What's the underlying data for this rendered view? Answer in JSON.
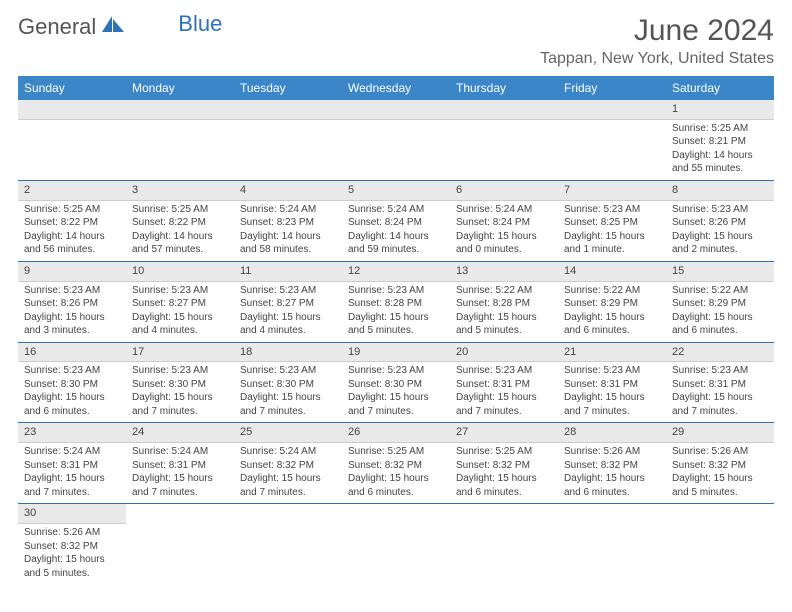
{
  "logo": {
    "textA": "General",
    "textB": "Blue"
  },
  "title": "June 2024",
  "location": "Tappan, New York, United States",
  "colors": {
    "headerBg": "#3a86c8",
    "headerText": "#ffffff",
    "dayBarBg": "#e9e9e9",
    "rowBorder": "#2d72b8",
    "titleColor": "#555555",
    "textColor": "#444444"
  },
  "columns": [
    "Sunday",
    "Monday",
    "Tuesday",
    "Wednesday",
    "Thursday",
    "Friday",
    "Saturday"
  ],
  "weeks": [
    [
      null,
      null,
      null,
      null,
      null,
      null,
      {
        "n": "1",
        "sr": "Sunrise: 5:25 AM",
        "ss": "Sunset: 8:21 PM",
        "dl": "Daylight: 14 hours and 55 minutes."
      }
    ],
    [
      {
        "n": "2",
        "sr": "Sunrise: 5:25 AM",
        "ss": "Sunset: 8:22 PM",
        "dl": "Daylight: 14 hours and 56 minutes."
      },
      {
        "n": "3",
        "sr": "Sunrise: 5:25 AM",
        "ss": "Sunset: 8:22 PM",
        "dl": "Daylight: 14 hours and 57 minutes."
      },
      {
        "n": "4",
        "sr": "Sunrise: 5:24 AM",
        "ss": "Sunset: 8:23 PM",
        "dl": "Daylight: 14 hours and 58 minutes."
      },
      {
        "n": "5",
        "sr": "Sunrise: 5:24 AM",
        "ss": "Sunset: 8:24 PM",
        "dl": "Daylight: 14 hours and 59 minutes."
      },
      {
        "n": "6",
        "sr": "Sunrise: 5:24 AM",
        "ss": "Sunset: 8:24 PM",
        "dl": "Daylight: 15 hours and 0 minutes."
      },
      {
        "n": "7",
        "sr": "Sunrise: 5:23 AM",
        "ss": "Sunset: 8:25 PM",
        "dl": "Daylight: 15 hours and 1 minute."
      },
      {
        "n": "8",
        "sr": "Sunrise: 5:23 AM",
        "ss": "Sunset: 8:26 PM",
        "dl": "Daylight: 15 hours and 2 minutes."
      }
    ],
    [
      {
        "n": "9",
        "sr": "Sunrise: 5:23 AM",
        "ss": "Sunset: 8:26 PM",
        "dl": "Daylight: 15 hours and 3 minutes."
      },
      {
        "n": "10",
        "sr": "Sunrise: 5:23 AM",
        "ss": "Sunset: 8:27 PM",
        "dl": "Daylight: 15 hours and 4 minutes."
      },
      {
        "n": "11",
        "sr": "Sunrise: 5:23 AM",
        "ss": "Sunset: 8:27 PM",
        "dl": "Daylight: 15 hours and 4 minutes."
      },
      {
        "n": "12",
        "sr": "Sunrise: 5:23 AM",
        "ss": "Sunset: 8:28 PM",
        "dl": "Daylight: 15 hours and 5 minutes."
      },
      {
        "n": "13",
        "sr": "Sunrise: 5:22 AM",
        "ss": "Sunset: 8:28 PM",
        "dl": "Daylight: 15 hours and 5 minutes."
      },
      {
        "n": "14",
        "sr": "Sunrise: 5:22 AM",
        "ss": "Sunset: 8:29 PM",
        "dl": "Daylight: 15 hours and 6 minutes."
      },
      {
        "n": "15",
        "sr": "Sunrise: 5:22 AM",
        "ss": "Sunset: 8:29 PM",
        "dl": "Daylight: 15 hours and 6 minutes."
      }
    ],
    [
      {
        "n": "16",
        "sr": "Sunrise: 5:23 AM",
        "ss": "Sunset: 8:30 PM",
        "dl": "Daylight: 15 hours and 6 minutes."
      },
      {
        "n": "17",
        "sr": "Sunrise: 5:23 AM",
        "ss": "Sunset: 8:30 PM",
        "dl": "Daylight: 15 hours and 7 minutes."
      },
      {
        "n": "18",
        "sr": "Sunrise: 5:23 AM",
        "ss": "Sunset: 8:30 PM",
        "dl": "Daylight: 15 hours and 7 minutes."
      },
      {
        "n": "19",
        "sr": "Sunrise: 5:23 AM",
        "ss": "Sunset: 8:30 PM",
        "dl": "Daylight: 15 hours and 7 minutes."
      },
      {
        "n": "20",
        "sr": "Sunrise: 5:23 AM",
        "ss": "Sunset: 8:31 PM",
        "dl": "Daylight: 15 hours and 7 minutes."
      },
      {
        "n": "21",
        "sr": "Sunrise: 5:23 AM",
        "ss": "Sunset: 8:31 PM",
        "dl": "Daylight: 15 hours and 7 minutes."
      },
      {
        "n": "22",
        "sr": "Sunrise: 5:23 AM",
        "ss": "Sunset: 8:31 PM",
        "dl": "Daylight: 15 hours and 7 minutes."
      }
    ],
    [
      {
        "n": "23",
        "sr": "Sunrise: 5:24 AM",
        "ss": "Sunset: 8:31 PM",
        "dl": "Daylight: 15 hours and 7 minutes."
      },
      {
        "n": "24",
        "sr": "Sunrise: 5:24 AM",
        "ss": "Sunset: 8:31 PM",
        "dl": "Daylight: 15 hours and 7 minutes."
      },
      {
        "n": "25",
        "sr": "Sunrise: 5:24 AM",
        "ss": "Sunset: 8:32 PM",
        "dl": "Daylight: 15 hours and 7 minutes."
      },
      {
        "n": "26",
        "sr": "Sunrise: 5:25 AM",
        "ss": "Sunset: 8:32 PM",
        "dl": "Daylight: 15 hours and 6 minutes."
      },
      {
        "n": "27",
        "sr": "Sunrise: 5:25 AM",
        "ss": "Sunset: 8:32 PM",
        "dl": "Daylight: 15 hours and 6 minutes."
      },
      {
        "n": "28",
        "sr": "Sunrise: 5:26 AM",
        "ss": "Sunset: 8:32 PM",
        "dl": "Daylight: 15 hours and 6 minutes."
      },
      {
        "n": "29",
        "sr": "Sunrise: 5:26 AM",
        "ss": "Sunset: 8:32 PM",
        "dl": "Daylight: 15 hours and 5 minutes."
      }
    ],
    [
      {
        "n": "30",
        "sr": "Sunrise: 5:26 AM",
        "ss": "Sunset: 8:32 PM",
        "dl": "Daylight: 15 hours and 5 minutes."
      },
      null,
      null,
      null,
      null,
      null,
      null
    ]
  ]
}
